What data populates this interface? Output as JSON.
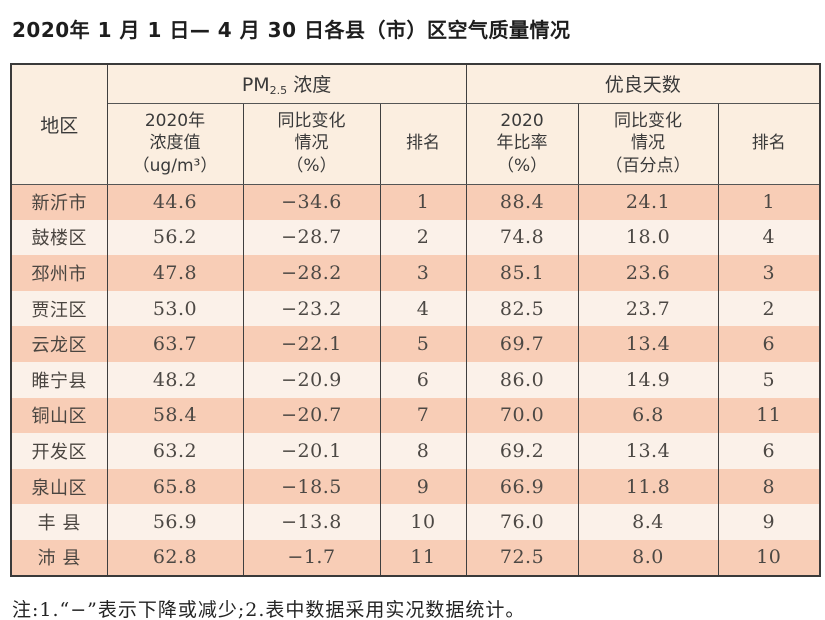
{
  "title": "2020年 1 月 1 日— 4 月 30 日各县（市）区空气质量情况",
  "footnote": "注:1.“−”表示下降或减少;2.表中数据采用实况数据统计。",
  "colors": {
    "row_odd": "#f8cdb6",
    "row_even": "#fbf1e9",
    "header_bg": "#fbeee0",
    "border": "#3a3a3a",
    "text": "#4c4844"
  },
  "table": {
    "region_header": "地区",
    "pm_group": {
      "main": "PM",
      "sub": "2.5",
      "rest": " 浓度"
    },
    "good_group": "优良天数",
    "columns": {
      "pm_value": "2020年\n浓度值\n（ug/m³）",
      "pm_change": "同比变化\n情况\n（%）",
      "pm_rank": "排名",
      "good_rate": "2020\n年比率\n（%）",
      "good_change": "同比变化\n情况\n（百分点）",
      "good_rank": "排名"
    },
    "rows": [
      {
        "region": "新沂市",
        "pm_value": "44.6",
        "pm_change": "−34.6",
        "pm_rank": "1",
        "good_rate": "88.4",
        "good_change": "24.1",
        "good_rank": "1"
      },
      {
        "region": "鼓楼区",
        "pm_value": "56.2",
        "pm_change": "−28.7",
        "pm_rank": "2",
        "good_rate": "74.8",
        "good_change": "18.0",
        "good_rank": "4"
      },
      {
        "region": "邳州市",
        "pm_value": "47.8",
        "pm_change": "−28.2",
        "pm_rank": "3",
        "good_rate": "85.1",
        "good_change": "23.6",
        "good_rank": "3"
      },
      {
        "region": "贾汪区",
        "pm_value": "53.0",
        "pm_change": "−23.2",
        "pm_rank": "4",
        "good_rate": "82.5",
        "good_change": "23.7",
        "good_rank": "2"
      },
      {
        "region": "云龙区",
        "pm_value": "63.7",
        "pm_change": "−22.1",
        "pm_rank": "5",
        "good_rate": "69.7",
        "good_change": "13.4",
        "good_rank": "6"
      },
      {
        "region": "睢宁县",
        "pm_value": "48.2",
        "pm_change": "−20.9",
        "pm_rank": "6",
        "good_rate": "86.0",
        "good_change": "14.9",
        "good_rank": "5"
      },
      {
        "region": "铜山区",
        "pm_value": "58.4",
        "pm_change": "−20.7",
        "pm_rank": "7",
        "good_rate": "70.0",
        "good_change": "6.8",
        "good_rank": "11"
      },
      {
        "region": "开发区",
        "pm_value": "63.2",
        "pm_change": "−20.1",
        "pm_rank": "8",
        "good_rate": "69.2",
        "good_change": "13.4",
        "good_rank": "6"
      },
      {
        "region": "泉山区",
        "pm_value": "65.8",
        "pm_change": "−18.5",
        "pm_rank": "9",
        "good_rate": "66.9",
        "good_change": "11.8",
        "good_rank": "8"
      },
      {
        "region": "丰 县",
        "pm_value": "56.9",
        "pm_change": "−13.8",
        "pm_rank": "10",
        "good_rate": "76.0",
        "good_change": "8.4",
        "good_rank": "9"
      },
      {
        "region": "沛 县",
        "pm_value": "62.8",
        "pm_change": "−1.7",
        "pm_rank": "11",
        "good_rate": "72.5",
        "good_change": "8.0",
        "good_rank": "10"
      }
    ]
  }
}
